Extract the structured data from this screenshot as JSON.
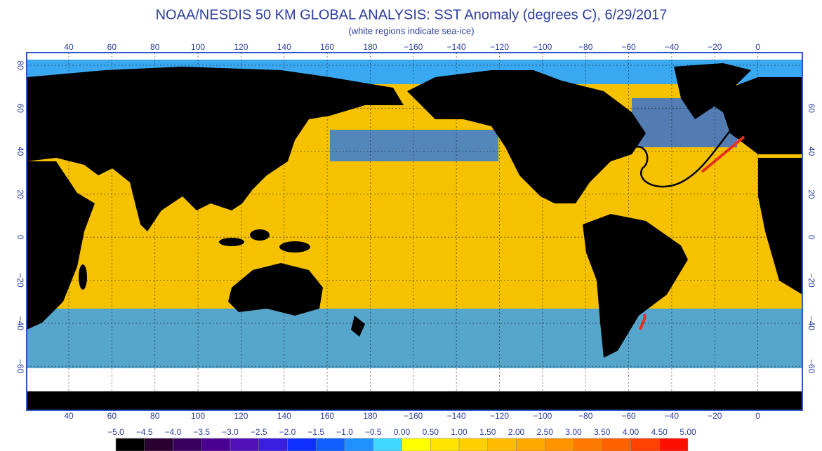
{
  "header": {
    "title": "NOAA/NESDIS 50 KM GLOBAL ANALYSIS: SST Anomaly (degrees C), 6/29/2017",
    "subtitle": "(white regions indicate sea-ice)"
  },
  "map": {
    "longitude_labels": [
      "40",
      "60",
      "80",
      "100",
      "120",
      "140",
      "160",
      "180",
      "−160",
      "−140",
      "−120",
      "−100",
      "−80",
      "−60",
      "−40",
      "−20",
      "0"
    ],
    "latitude_labels_left": [
      "80",
      "60",
      "40",
      "20",
      "0",
      "−20",
      "−40",
      "−60"
    ],
    "latitude_labels_right": [
      "60",
      "40",
      "20",
      "0",
      "−20",
      "−40",
      "−60"
    ]
  },
  "legend": {
    "labels": [
      "−5.0",
      "−4.5",
      "−4.0",
      "−3.5",
      "−3.0",
      "−2.5",
      "−2.0",
      "−1.5",
      "−1.0",
      "−0.5",
      "0.00",
      "0.50",
      "1.00",
      "1.50",
      "2.00",
      "2.50",
      "3.00",
      "3.50",
      "4.00",
      "4.50",
      "5.00"
    ],
    "colors": [
      "#000000",
      "#2a0030",
      "#3a0060",
      "#4a0090",
      "#5010b8",
      "#3a1ee0",
      "#1030ff",
      "#1060ff",
      "#2090ff",
      "#40d8ff",
      "#ffff00",
      "#ffe400",
      "#ffd000",
      "#ffbc00",
      "#ffa800",
      "#ff9400",
      "#ff7a00",
      "#ff6000",
      "#ff4000",
      "#ff1000"
    ]
  }
}
